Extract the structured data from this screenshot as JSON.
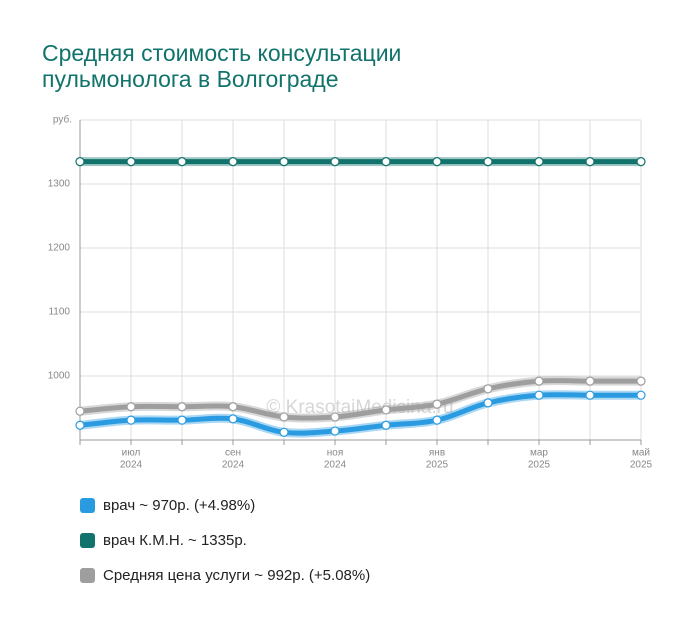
{
  "chart_data": {
    "type": "line",
    "title": "Средняя стоимость консультации пульмонолога в Волгограде",
    "y_unit": "руб.",
    "watermark": "© KrasotaiMedicina.ru",
    "categories": [
      null,
      "июл",
      null,
      "сен",
      null,
      "ноя",
      null,
      "янв",
      null,
      "мар",
      null,
      "май"
    ],
    "category_years": [
      null,
      "2024",
      null,
      "2024",
      null,
      "2024",
      null,
      "2025",
      null,
      "2025",
      null,
      "2025"
    ],
    "ylim": [
      900,
      1400
    ],
    "yticks": [
      1000,
      1100,
      1200,
      1300
    ],
    "grid": true,
    "series": [
      {
        "name": "врач ~ 970р. (+4.98%)",
        "color": "#2a9be0",
        "values": [
          923,
          931,
          931,
          933,
          912,
          914,
          923,
          931,
          958,
          970,
          970,
          970
        ]
      },
      {
        "name": "врач К.М.Н. ~ 1335р.",
        "color": "#11736b",
        "values": [
          1335,
          1335,
          1335,
          1335,
          1335,
          1335,
          1335,
          1335,
          1335,
          1335,
          1335,
          1335
        ]
      },
      {
        "name": "Средняя цена услуги ~ 992р. (+5.08%)",
        "color": "#9e9e9e",
        "values": [
          945,
          952,
          952,
          952,
          936,
          936,
          947,
          956,
          980,
          992,
          992,
          992
        ]
      }
    ]
  }
}
